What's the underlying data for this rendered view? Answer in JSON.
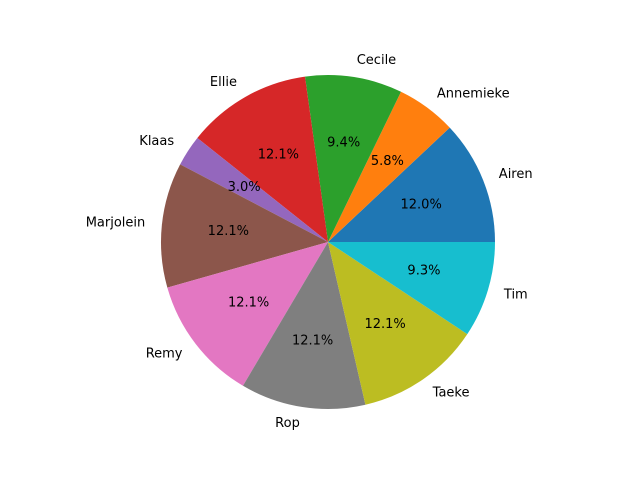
{
  "chart_data": {
    "type": "pie",
    "title": "",
    "categories": [
      "Airen",
      "Annemieke",
      "Cecile",
      "Ellie",
      "Klaas",
      "Marjolein",
      "Remy",
      "Rop",
      "Taeke",
      "Tim"
    ],
    "values": [
      12.0,
      5.8,
      9.4,
      12.1,
      3.0,
      12.1,
      12.1,
      12.1,
      12.1,
      9.3
    ],
    "percent_labels": [
      "12.0%",
      "5.8%",
      "9.4%",
      "12.1%",
      "3.0%",
      "12.1%",
      "12.1%",
      "12.1%",
      "12.1%",
      "9.3%"
    ],
    "colors": [
      "#1f77b4",
      "#ff7f0e",
      "#2ca02c",
      "#d62728",
      "#9467bd",
      "#8c564b",
      "#e377c2",
      "#7f7f7f",
      "#bcbd22",
      "#17becf"
    ],
    "start_angle_deg": 0,
    "direction": "counterclockwise",
    "legend": "none"
  }
}
